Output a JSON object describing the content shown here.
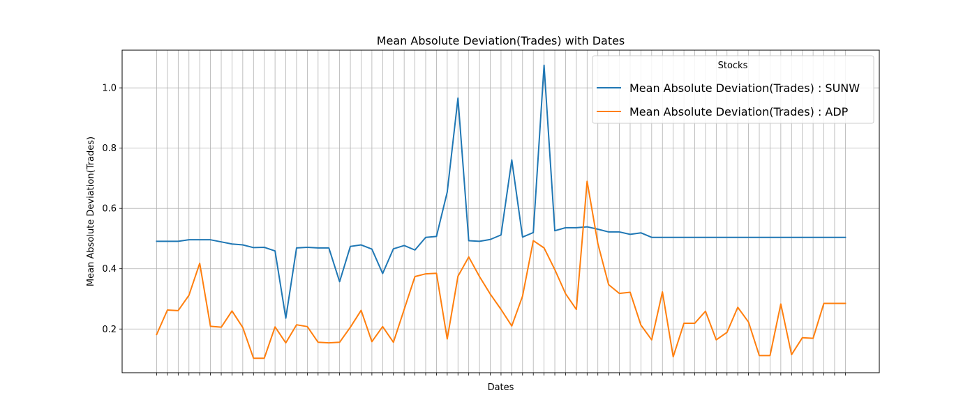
{
  "chart_data": {
    "type": "line",
    "title": "Mean Absolute Deviation(Trades) with Dates",
    "xlabel": "Dates",
    "ylabel": "Mean Absolute Deviation(Trades)",
    "ylim": [
      0.055,
      1.125
    ],
    "yticks": [
      0.2,
      0.4,
      0.6,
      0.8,
      1.0
    ],
    "ytick_labels": [
      "0.2",
      "0.4",
      "0.6",
      "0.8",
      "1.0"
    ],
    "x_count": 65,
    "grid": true,
    "legend_title": "Stocks",
    "legend_position": "top-right",
    "series": [
      {
        "name": "Mean Absolute Deviation(Trades) : SUNW",
        "color": "#1f77b4",
        "values": [
          0.491,
          0.491,
          0.491,
          0.496,
          0.496,
          0.496,
          0.489,
          0.482,
          0.479,
          0.47,
          0.471,
          0.459,
          0.236,
          0.469,
          0.471,
          0.469,
          0.469,
          0.357,
          0.474,
          0.479,
          0.465,
          0.384,
          0.466,
          0.477,
          0.462,
          0.504,
          0.507,
          0.654,
          0.966,
          0.493,
          0.491,
          0.497,
          0.512,
          0.761,
          0.505,
          0.52,
          1.075,
          0.526,
          0.536,
          0.536,
          0.539,
          0.531,
          0.522,
          0.522,
          0.514,
          0.519,
          0.504,
          0.504,
          0.504,
          0.504,
          0.504,
          0.504,
          0.504,
          0.504,
          0.504,
          0.504,
          0.504,
          0.504,
          0.504,
          0.504,
          0.504,
          0.504,
          0.504,
          0.504,
          0.504
        ]
      },
      {
        "name": "Mean Absolute Deviation(Trades) : ADP",
        "color": "#ff7f0e",
        "values": [
          0.182,
          0.263,
          0.261,
          0.312,
          0.418,
          0.209,
          0.206,
          0.26,
          0.205,
          0.103,
          0.103,
          0.207,
          0.154,
          0.214,
          0.208,
          0.156,
          0.154,
          0.156,
          0.206,
          0.262,
          0.158,
          0.208,
          0.156,
          0.265,
          0.374,
          0.383,
          0.385,
          0.167,
          0.375,
          0.439,
          0.374,
          0.316,
          0.265,
          0.21,
          0.309,
          0.493,
          0.469,
          0.397,
          0.317,
          0.265,
          0.69,
          0.483,
          0.347,
          0.318,
          0.322,
          0.213,
          0.164,
          0.323,
          0.108,
          0.219,
          0.219,
          0.259,
          0.164,
          0.189,
          0.272,
          0.223,
          0.112,
          0.112,
          0.283,
          0.115,
          0.171,
          0.169,
          0.285,
          0.285,
          0.285
        ]
      }
    ]
  }
}
